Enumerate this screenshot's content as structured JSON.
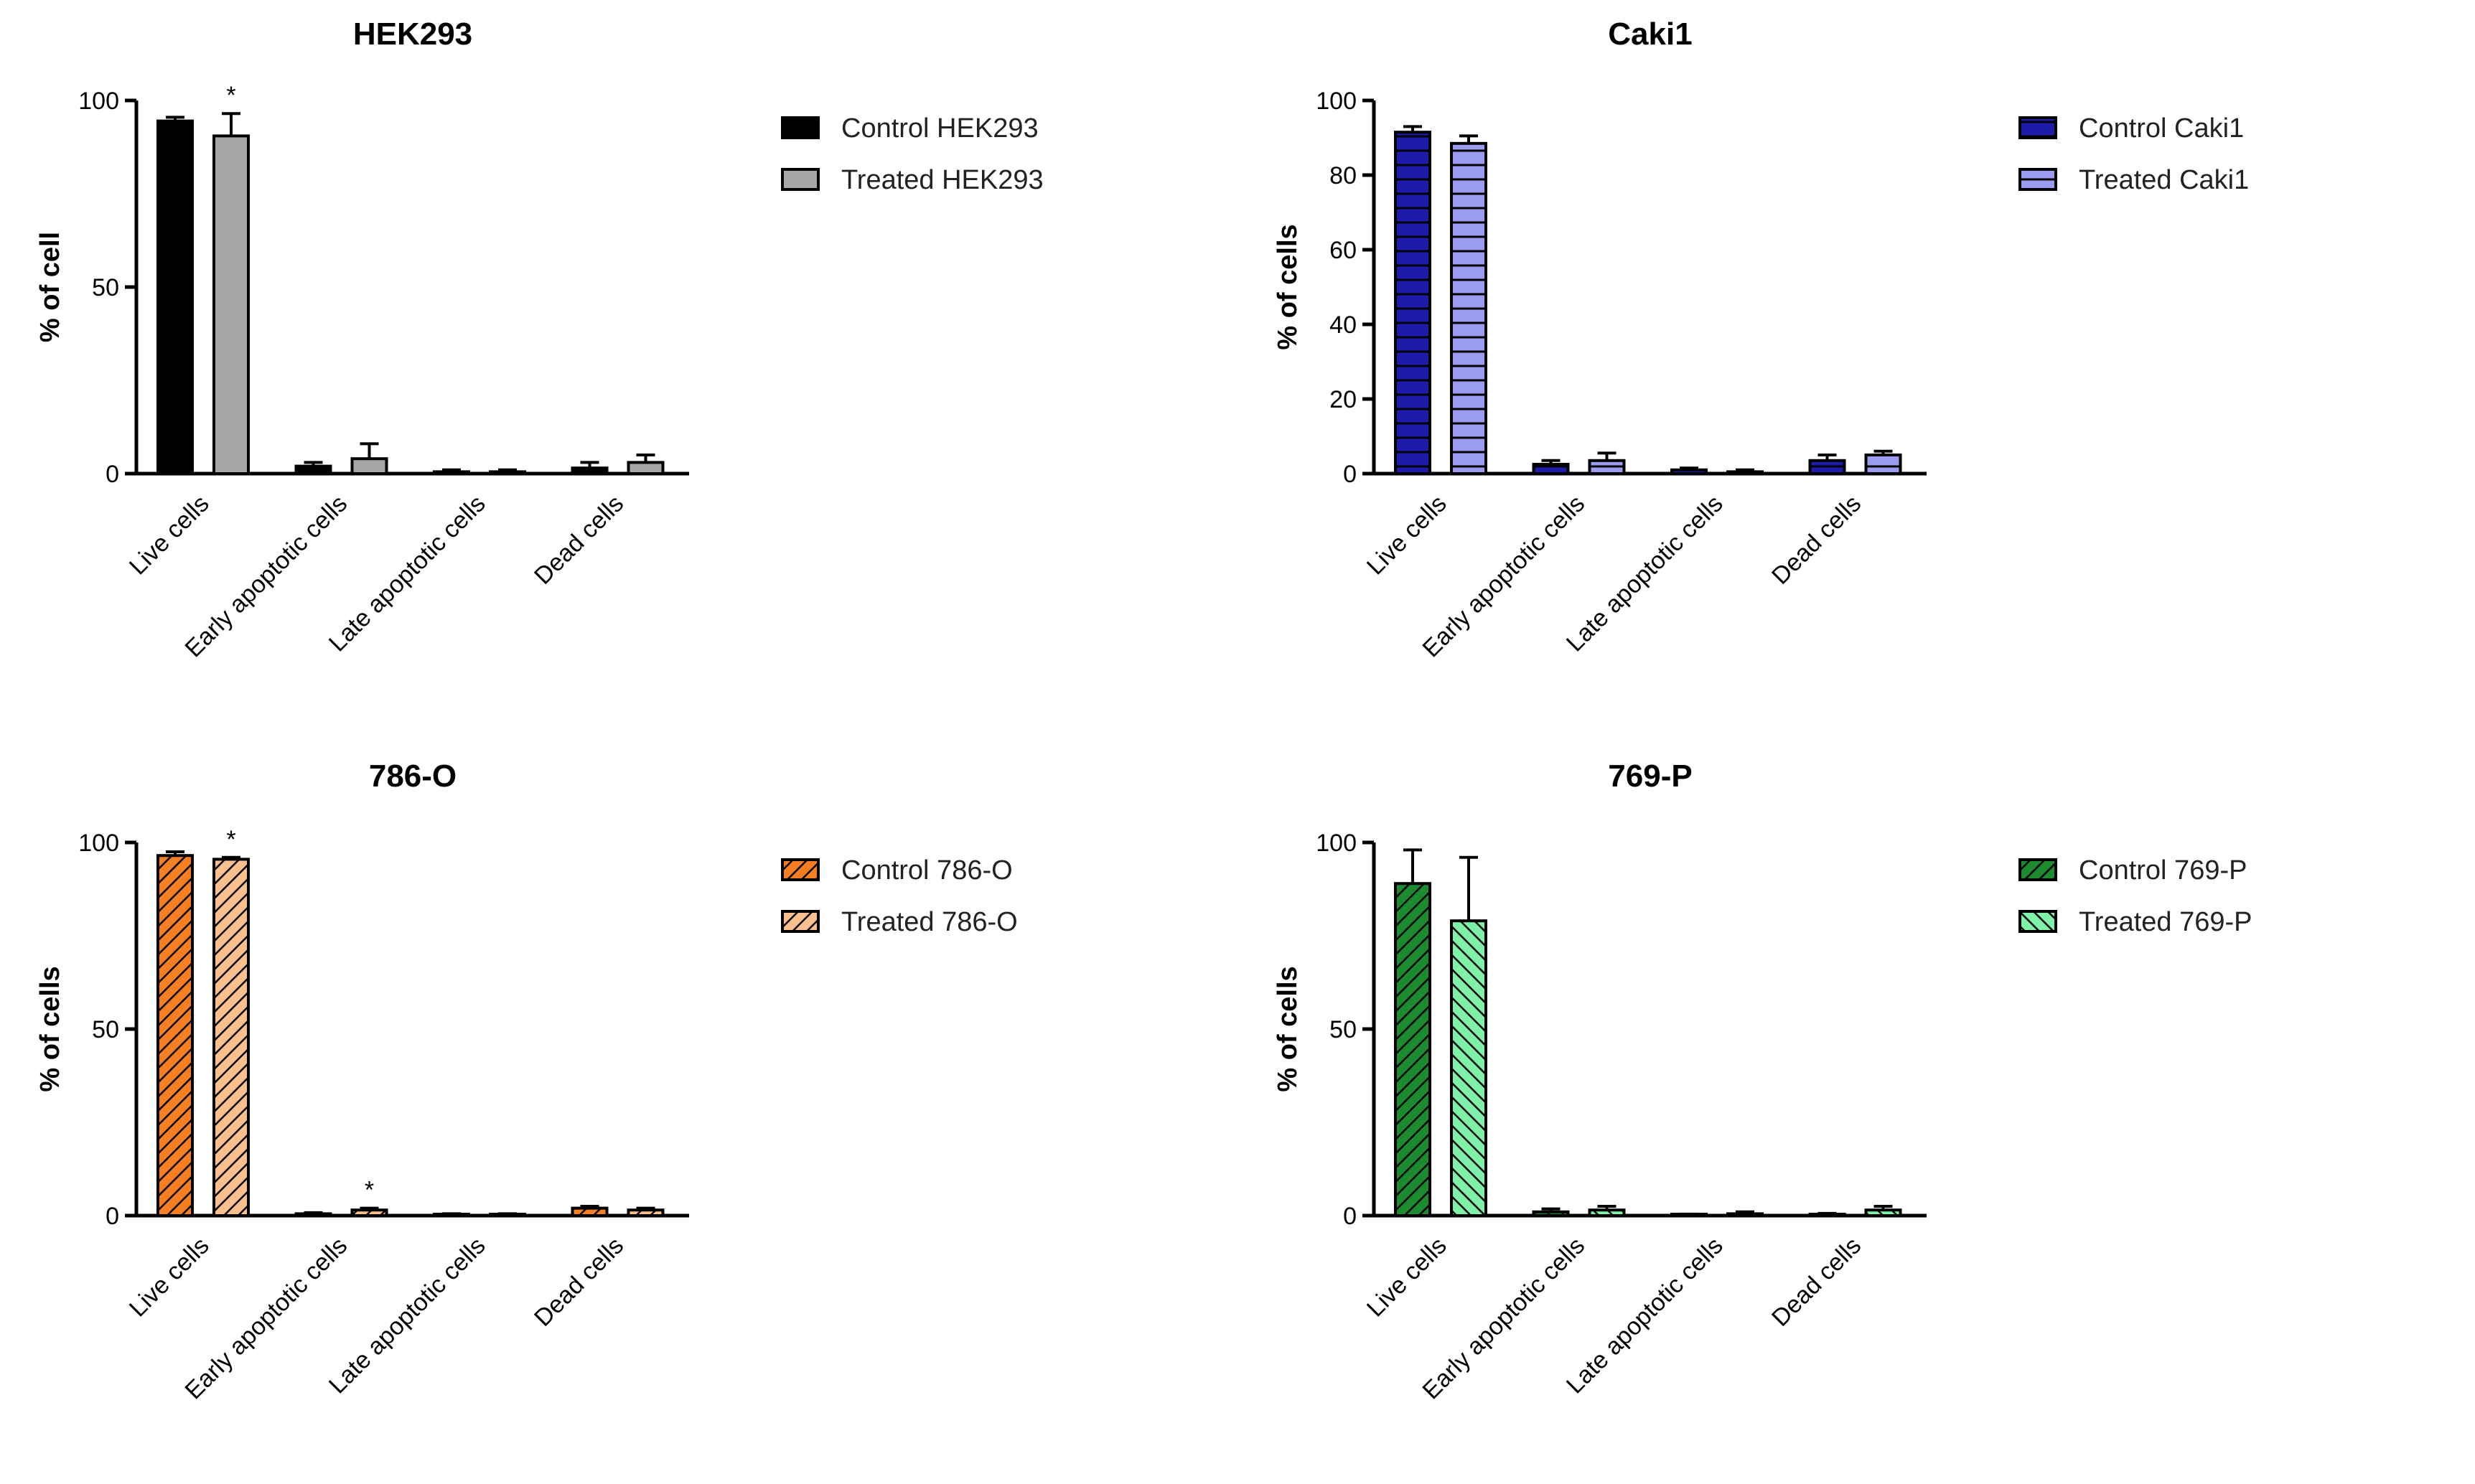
{
  "chart_data": [
    {
      "type": "bar",
      "title": "HEK293",
      "ylabel": "% of cell",
      "xlabel": "",
      "ylim": [
        0,
        100
      ],
      "yticks": [
        0,
        50,
        100
      ],
      "categories": [
        "Live cells",
        "Early apoptotic cells",
        "Late apoptotic cells",
        "Dead cells"
      ],
      "series": [
        {
          "name": "Control HEK293",
          "values": [
            94.5,
            2,
            0.5,
            1.5
          ],
          "errors": [
            1,
            1,
            0.5,
            1.5
          ],
          "color": "#000000",
          "pattern": "solid"
        },
        {
          "name": "Treated HEK293",
          "values": [
            90.5,
            4,
            0.5,
            3
          ],
          "errors": [
            6,
            4,
            0.5,
            2
          ],
          "color": "#a6a6a6",
          "pattern": "solid"
        }
      ],
      "annotations": [
        {
          "series": 1,
          "category": 0,
          "text": "*"
        }
      ],
      "legend_position": "right"
    },
    {
      "type": "bar",
      "title": "Caki1",
      "ylabel": "% of cells",
      "xlabel": "",
      "ylim": [
        0,
        100
      ],
      "yticks": [
        0,
        20,
        40,
        60,
        80,
        100
      ],
      "categories": [
        "Live cells",
        "Early apoptotic cells",
        "Late apoptotic cells",
        "Dead cells"
      ],
      "series": [
        {
          "name": "Control Caki1",
          "values": [
            91.5,
            2.5,
            1,
            3.5
          ],
          "errors": [
            1.5,
            1,
            0.5,
            1.5
          ],
          "color": "#1c1ca8",
          "pattern": "hstripe"
        },
        {
          "name": "Treated Caki1",
          "values": [
            88.5,
            3.5,
            0.5,
            5
          ],
          "errors": [
            2,
            2,
            0.5,
            1
          ],
          "color": "#9b9bef",
          "pattern": "hstripe"
        }
      ],
      "annotations": [],
      "legend_position": "right"
    },
    {
      "type": "bar",
      "title": "786-O",
      "ylabel": "% of cells",
      "xlabel": "",
      "ylim": [
        0,
        100
      ],
      "yticks": [
        0,
        50,
        100
      ],
      "categories": [
        "Live cells",
        "Early apoptotic cells",
        "Late apoptotic cells",
        "Dead cells"
      ],
      "series": [
        {
          "name": "Control 786-O",
          "values": [
            96.5,
            0.5,
            0.3,
            2
          ],
          "errors": [
            1,
            0.3,
            0.2,
            0.5
          ],
          "color": "#f57f22",
          "pattern": "diag"
        },
        {
          "name": "Treated 786-O",
          "values": [
            95.5,
            1.5,
            0.3,
            1.5
          ],
          "errors": [
            0.5,
            0.5,
            0.2,
            0.5
          ],
          "color": "#f9c08e",
          "pattern": "diag"
        }
      ],
      "annotations": [
        {
          "series": 1,
          "category": 0,
          "text": "*"
        },
        {
          "series": 1,
          "category": 1,
          "text": "*"
        }
      ],
      "legend_position": "right"
    },
    {
      "type": "bar",
      "title": "769-P",
      "ylabel": "% of cells",
      "xlabel": "",
      "ylim": [
        0,
        100
      ],
      "yticks": [
        0,
        50,
        100
      ],
      "categories": [
        "Live cells",
        "Early apoptotic cells",
        "Late apoptotic cells",
        "Dead cells"
      ],
      "series": [
        {
          "name": "Control 769-P",
          "values": [
            89,
            1,
            0.2,
            0.3
          ],
          "errors": [
            9,
            0.8,
            0.2,
            0.3
          ],
          "color": "#1c8a2e",
          "pattern": "diag"
        },
        {
          "name": "Treated 769-P",
          "values": [
            79,
            1.5,
            0.5,
            1.5
          ],
          "errors": [
            17,
            1,
            0.5,
            1
          ],
          "color": "#7ef0a8",
          "pattern": "diag2"
        }
      ],
      "annotations": [],
      "legend_position": "right"
    }
  ]
}
